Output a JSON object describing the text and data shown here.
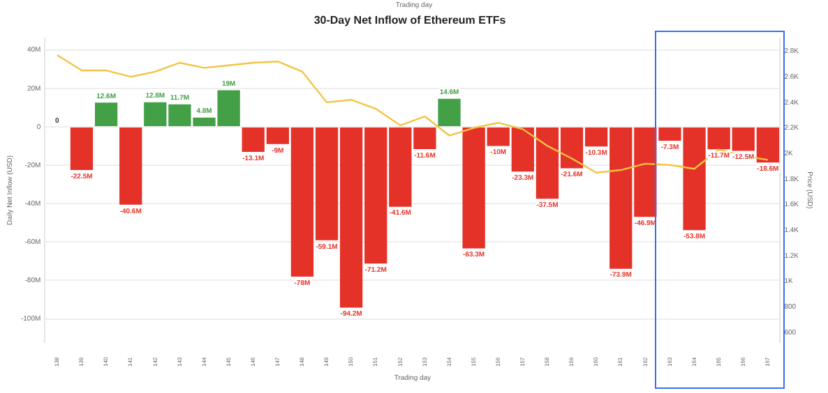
{
  "chart_data": {
    "type": "bar",
    "title": "30-Day Net Inflow of Ethereum ETFs",
    "xlabel": "Trading day",
    "ylabel": "Daily Net Inflow (USD)",
    "y2label": "Price (USD)",
    "annotations": [
      "Trading day"
    ],
    "categories": [
      "138",
      "139",
      "140",
      "141",
      "142",
      "143",
      "144",
      "145",
      "146",
      "147",
      "148",
      "149",
      "150",
      "151",
      "152",
      "153",
      "154",
      "155",
      "156",
      "157",
      "158",
      "159",
      "160",
      "161",
      "162",
      "163",
      "164",
      "165",
      "166",
      "167"
    ],
    "series": [
      {
        "colors": [
          "#9e9e9e",
          "#e53228",
          "#43a047",
          "#e53228",
          "#43a047",
          "#43a047",
          "#43a047",
          "#43a047",
          "#e53228",
          "#e53228",
          "#e53228",
          "#e53228",
          "#e53228",
          "#e53228",
          "#e53228",
          "#e53228",
          "#43a047",
          "#e53228",
          "#e53228",
          "#e53228",
          "#e53228",
          "#e53228",
          "#e53228",
          "#e53228",
          "#e53228",
          "#e53228",
          "#e53228",
          "#e53228",
          "#e53228",
          "#e53228"
        ],
        "values": [
          0,
          -22.5,
          12.6,
          -40.6,
          12.8,
          11.7,
          4.8,
          19,
          -13.1,
          -9,
          -78,
          -59.1,
          -94.2,
          -71.2,
          -41.6,
          -11.6,
          14.6,
          -63.3,
          -10,
          -23.3,
          -37.5,
          -21.6,
          -10.3,
          -73.9,
          -46.9,
          -7.3,
          -53.8,
          -11.7,
          -12.5,
          -18.6
        ],
        "value_labels": [
          "0",
          "-22.5M",
          "12.6M",
          "-40.6M",
          "12.8M",
          "11.7M",
          "4.8M",
          "19M",
          "-13.1M",
          "-9M",
          "-78M",
          "-59.1M",
          "-94.2M",
          "-71.2M",
          "-41.6M",
          "-11.6M",
          "14.6M",
          "-63.3M",
          "-10M",
          "-23.3M",
          "-37.5M",
          "-21.6M",
          "-10.3M",
          "-73.9M",
          "-46.9M",
          "-7.3M",
          "-53.8M",
          "-11.7M",
          "-12.5M",
          "-18.6M"
        ]
      },
      {
        "type": "line",
        "axis": "y2",
        "color": "#f2c443",
        "values": [
          2770,
          2650,
          2650,
          2600,
          2640,
          2710,
          2670,
          2690,
          2710,
          2720,
          2640,
          2400,
          2420,
          2350,
          2220,
          2290,
          2140,
          2200,
          2240,
          2190,
          2060,
          1960,
          1850,
          1870,
          1920,
          1910,
          1880,
          2030,
          1980,
          1950
        ]
      }
    ],
    "ylim": [
      -112,
      46
    ],
    "yticks": [
      {
        "value": 40,
        "label": "40M"
      },
      {
        "value": 20,
        "label": "20M"
      },
      0,
      {
        "value": -20,
        "label": "-20M"
      },
      {
        "value": -40,
        "label": "-40M"
      },
      {
        "value": -60,
        "label": "-60M"
      },
      {
        "value": -80,
        "label": "-80M"
      },
      {
        "value": -100,
        "label": "-100M"
      }
    ],
    "y2lim": [
      525,
      2900
    ],
    "y2ticks": [
      600,
      800,
      {
        "value": 1000,
        "label": "1K"
      },
      {
        "value": 1200,
        "label": "1.2K"
      },
      {
        "value": 1400,
        "label": "1.4K"
      },
      {
        "value": 1600,
        "label": "1.6K"
      },
      {
        "value": 1800,
        "label": "1.8K"
      },
      {
        "value": 2000,
        "label": "2K"
      },
      {
        "value": 2200,
        "label": "2.2K"
      },
      {
        "value": 2400,
        "label": "2.4K"
      },
      {
        "value": 2600,
        "label": "2.6K"
      },
      {
        "value": 2800,
        "label": "2.8K"
      }
    ],
    "grid": "y",
    "legend": false,
    "marker": "none",
    "line_style": "solid"
  }
}
